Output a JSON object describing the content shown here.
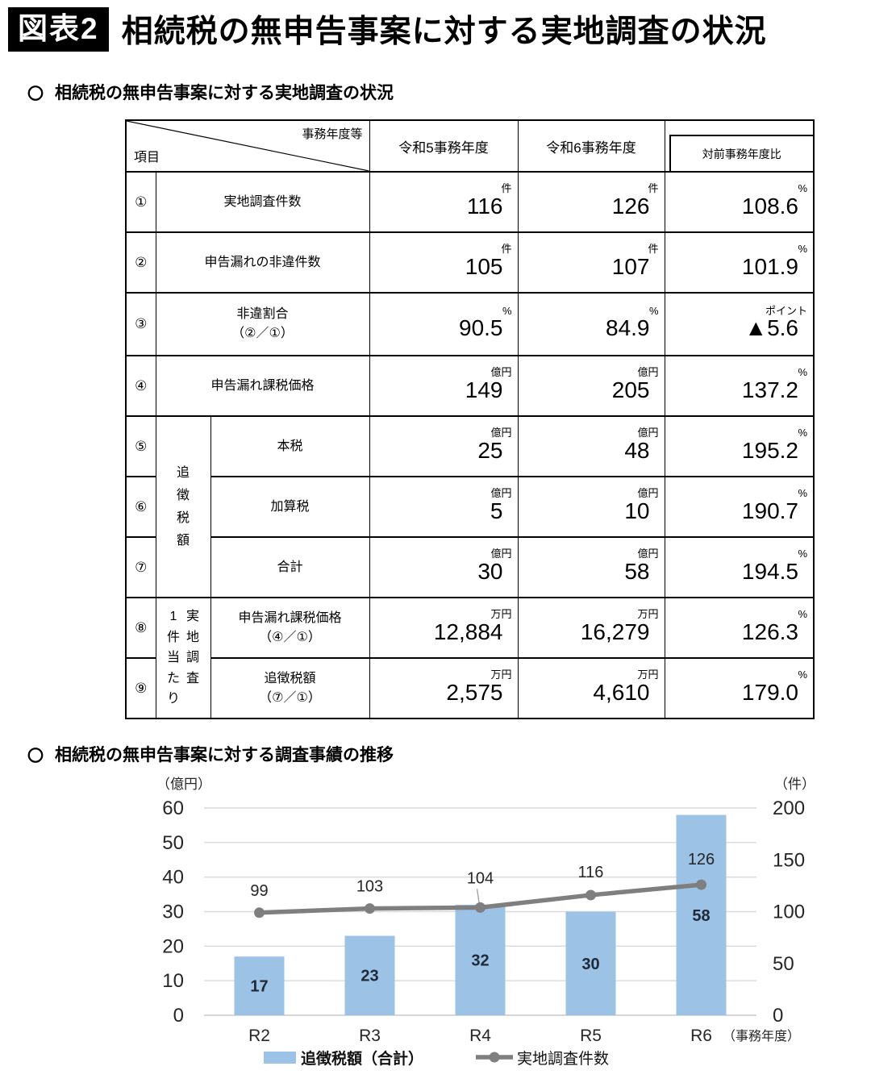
{
  "page": {
    "badge": "図表2",
    "title": "相続税の無申告事案に対する実地調査の状況",
    "bullet": "〇",
    "section1": "相続税の無申告事案に対する実地調査の状況",
    "section2": "相続税の無申告事案に対する調査事績の推移"
  },
  "table": {
    "corner": {
      "top": "事務年度等",
      "bottom": "項目"
    },
    "col_headers": [
      "令和5事務年度",
      "令和6事務年度",
      "対前事務年度比"
    ],
    "group1": "追徴税額",
    "group2_left": "1件当たり",
    "group2_right": "実地調査",
    "rows": [
      {
        "no": "①",
        "name": "実地調査件数",
        "sub": "",
        "u1": "件",
        "v1": "116",
        "u2": "件",
        "v2": "126",
        "u3": "%",
        "v3": "108.6"
      },
      {
        "no": "②",
        "name": "申告漏れの非違件数",
        "sub": "",
        "u1": "件",
        "v1": "105",
        "u2": "件",
        "v2": "107",
        "u3": "%",
        "v3": "101.9"
      },
      {
        "no": "③",
        "name": "非違割合",
        "sub": "（②／①）",
        "u1": "%",
        "v1": "90.5",
        "u2": "%",
        "v2": "84.9",
        "u3": "ポイント",
        "v3": "▲5.6"
      },
      {
        "no": "④",
        "name": "申告漏れ課税価格",
        "sub": "",
        "u1": "億円",
        "v1": "149",
        "u2": "億円",
        "v2": "205",
        "u3": "%",
        "v3": "137.2"
      },
      {
        "no": "⑤",
        "name": "本税",
        "sub": "",
        "u1": "億円",
        "v1": "25",
        "u2": "億円",
        "v2": "48",
        "u3": "%",
        "v3": "195.2"
      },
      {
        "no": "⑥",
        "name": "加算税",
        "sub": "",
        "u1": "億円",
        "v1": "5",
        "u2": "億円",
        "v2": "10",
        "u3": "%",
        "v3": "190.7"
      },
      {
        "no": "⑦",
        "name": "合計",
        "sub": "",
        "u1": "億円",
        "v1": "30",
        "u2": "億円",
        "v2": "58",
        "u3": "%",
        "v3": "194.5"
      },
      {
        "no": "⑧",
        "name": "申告漏れ課税価格",
        "sub": "（④／①）",
        "u1": "万円",
        "v1": "12,884",
        "u2": "万円",
        "v2": "16,279",
        "u3": "%",
        "v3": "126.3"
      },
      {
        "no": "⑨",
        "name": "追徴税額",
        "sub": "（⑦／①）",
        "u1": "万円",
        "v1": "2,575",
        "u2": "万円",
        "v2": "4,610",
        "u3": "%",
        "v3": "179.0"
      }
    ]
  },
  "chart_data": {
    "type": "bar",
    "categories": [
      "R2",
      "R3",
      "R4",
      "R5",
      "R6"
    ],
    "series": [
      {
        "name": "追徴税額（合計）",
        "type": "bar",
        "axis": "left",
        "values": [
          17,
          23,
          32,
          30,
          58
        ],
        "color": "#9CC2E5"
      },
      {
        "name": "実地調査件数",
        "type": "line",
        "axis": "right",
        "values": [
          99,
          103,
          104,
          116,
          126
        ],
        "color": "#7F7F7F",
        "label_dy": [
          -21,
          -21,
          -30,
          -22,
          -25
        ],
        "leader_index": 2
      }
    ],
    "left_axis": {
      "unit": "（億円）",
      "min": 0,
      "max": 60,
      "step": 10
    },
    "right_axis": {
      "unit": "（件）",
      "min": 0,
      "max": 200,
      "step": 50
    },
    "x_axis_note": "（事務年度）",
    "grid": true,
    "legend_position": "bottom",
    "colors": {
      "grid": "#D9D9D9",
      "zero_line": "#C8C8C8",
      "bar_label": "#1E2A38",
      "text": "#262626",
      "leader": "#A0A0A0"
    }
  }
}
